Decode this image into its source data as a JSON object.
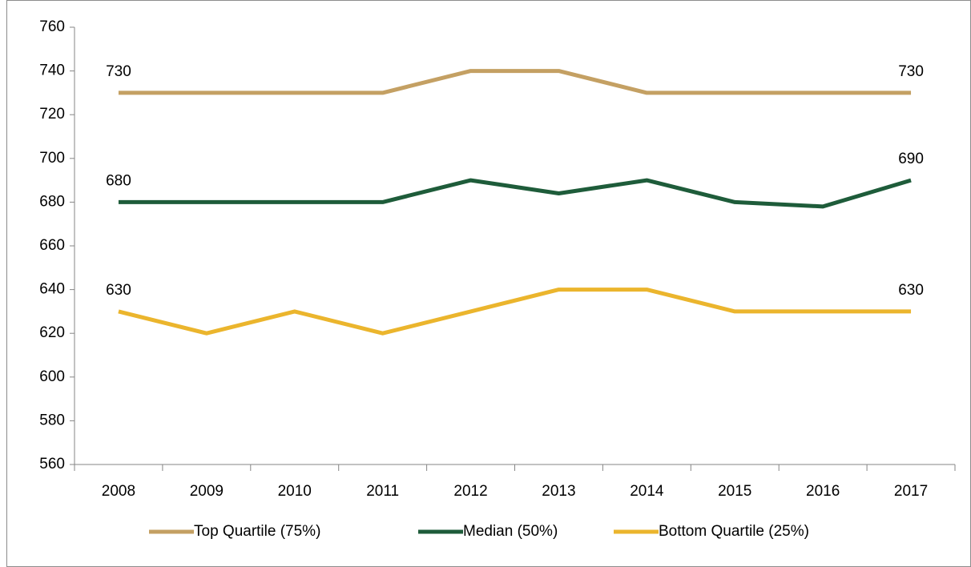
{
  "chart_data": {
    "type": "line",
    "categories": [
      "2008",
      "2009",
      "2010",
      "2011",
      "2012",
      "2013",
      "2014",
      "2015",
      "2016",
      "2017"
    ],
    "series": [
      {
        "name": "Top Quartile (75%)",
        "color": "#c4a063",
        "values": [
          730,
          730,
          730,
          730,
          740,
          740,
          730,
          730,
          730,
          730
        ]
      },
      {
        "name": "Median (50%)",
        "color": "#1e5c3a",
        "values": [
          680,
          680,
          680,
          680,
          690,
          684,
          690,
          680,
          678,
          690
        ]
      },
      {
        "name": "Bottom Quartile (25%)",
        "color": "#ebb52d",
        "values": [
          630,
          620,
          630,
          620,
          630,
          640,
          640,
          630,
          630,
          630
        ]
      }
    ],
    "ylim": [
      560,
      760
    ],
    "yticks": [
      560,
      580,
      600,
      620,
      640,
      660,
      680,
      700,
      720,
      740,
      760
    ],
    "data_labels": "ends",
    "legend": "bottom",
    "grid": false
  }
}
